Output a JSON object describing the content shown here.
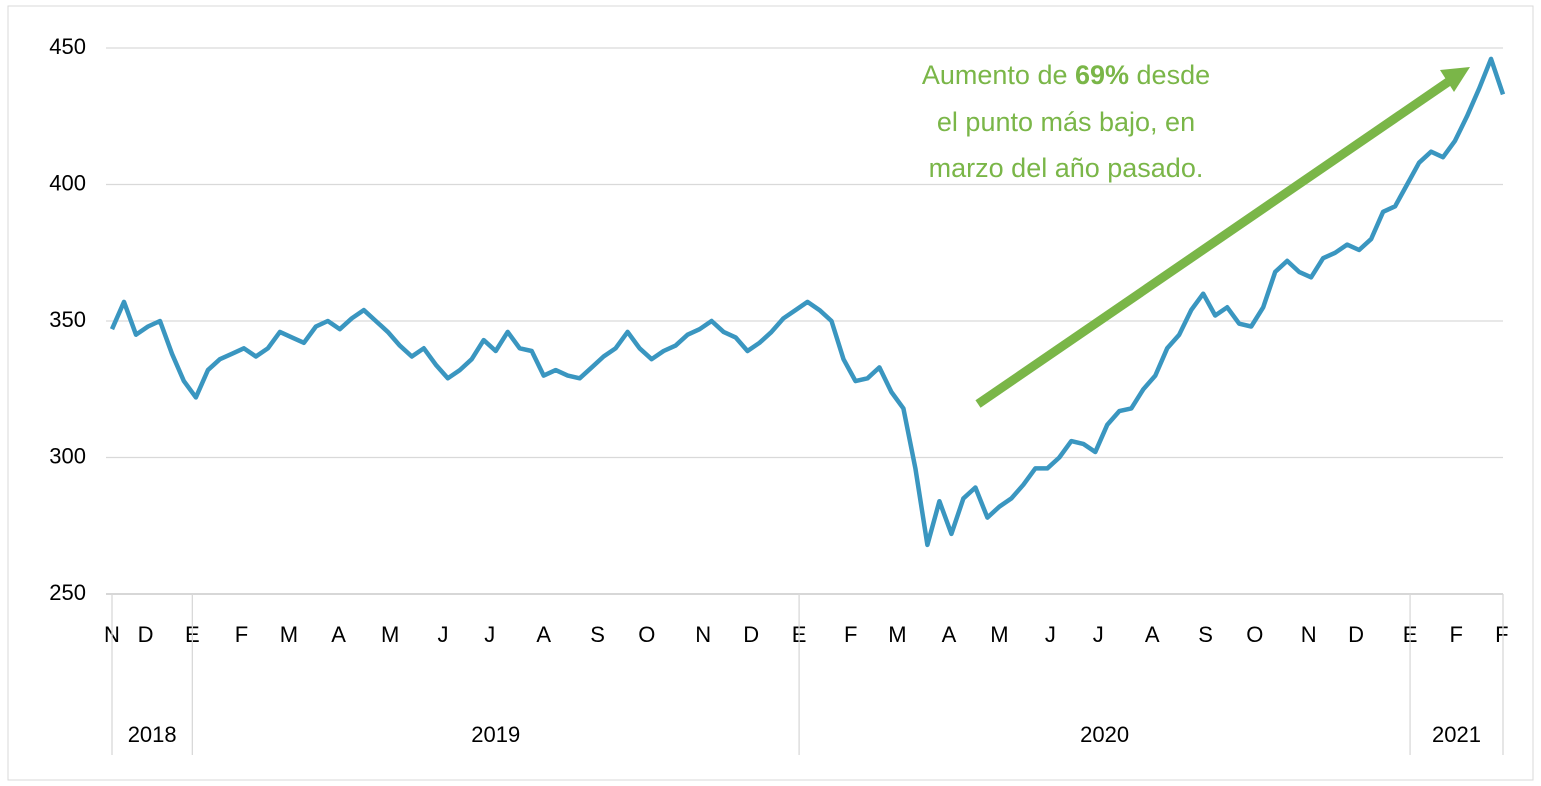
{
  "chart_data": {
    "type": "line",
    "ylim": [
      250,
      450
    ],
    "yticks": [
      250,
      300,
      350,
      400,
      450
    ],
    "grid": true,
    "xlim": [
      0,
      116
    ],
    "xticks": [
      {
        "value": 0,
        "label": "N"
      },
      {
        "value": 2.8,
        "label": "D"
      },
      {
        "value": 6.7,
        "label": "E"
      },
      {
        "value": 10.8,
        "label": "F"
      },
      {
        "value": 14.75,
        "label": "M"
      },
      {
        "value": 18.9,
        "label": "A"
      },
      {
        "value": 23.2,
        "label": "M"
      },
      {
        "value": 27.6,
        "label": "J"
      },
      {
        "value": 31.5,
        "label": "J"
      },
      {
        "value": 36,
        "label": "A"
      },
      {
        "value": 40.5,
        "label": "S"
      },
      {
        "value": 44.6,
        "label": "O"
      },
      {
        "value": 49.3,
        "label": "N"
      },
      {
        "value": 53.3,
        "label": "D"
      },
      {
        "value": 57.3,
        "label": "E"
      },
      {
        "value": 61.6,
        "label": "F"
      },
      {
        "value": 65.5,
        "label": "M"
      },
      {
        "value": 69.8,
        "label": "A"
      },
      {
        "value": 74,
        "label": "M"
      },
      {
        "value": 78.25,
        "label": "J"
      },
      {
        "value": 82.25,
        "label": "J"
      },
      {
        "value": 86.75,
        "label": "A"
      },
      {
        "value": 91.2,
        "label": "S"
      },
      {
        "value": 95.3,
        "label": "O"
      },
      {
        "value": 99.8,
        "label": "N"
      },
      {
        "value": 103.75,
        "label": "D"
      },
      {
        "value": 108.25,
        "label": "E"
      },
      {
        "value": 112.1,
        "label": "F"
      },
      {
        "value": 115.9,
        "label": "F"
      }
    ],
    "years": [
      {
        "label": "2018",
        "start": 0,
        "end": 6.7
      },
      {
        "label": "2019",
        "start": 6.7,
        "end": 57.3
      },
      {
        "label": "2020",
        "start": 57.3,
        "end": 108.25
      },
      {
        "label": "2021",
        "start": 108.25,
        "end": 116
      }
    ],
    "series": [
      {
        "color": "#3a96c0",
        "values": [
          347,
          357,
          345,
          348,
          350,
          338,
          328,
          322,
          332,
          336,
          338,
          340,
          337,
          340,
          346,
          344,
          342,
          348,
          350,
          347,
          351,
          354,
          350,
          346,
          341,
          337,
          340,
          334,
          329,
          332,
          336,
          343,
          339,
          346,
          340,
          339,
          330,
          332,
          330,
          329,
          333,
          337,
          340,
          346,
          340,
          336,
          339,
          341,
          345,
          347,
          350,
          346,
          344,
          339,
          342,
          346,
          351,
          354,
          357,
          354,
          350,
          336,
          328,
          329,
          333,
          324,
          318,
          296,
          268,
          284,
          272,
          285,
          289,
          278,
          282,
          285,
          290,
          296,
          296,
          300,
          306,
          305,
          302,
          312,
          317,
          318,
          325,
          330,
          340,
          345,
          354,
          360,
          352,
          355,
          349,
          348,
          355,
          368,
          372,
          368,
          366,
          373,
          375,
          378,
          376,
          380,
          390,
          392,
          400,
          408,
          412,
          410,
          416,
          425,
          435,
          446,
          433
        ]
      }
    ],
    "annotation": {
      "color": "#7ab648",
      "line1": [
        "Aumento de ",
        "69%",
        " desde"
      ],
      "line2": "el punto más bajo, en",
      "line3": "marzo del año pasado."
    }
  }
}
